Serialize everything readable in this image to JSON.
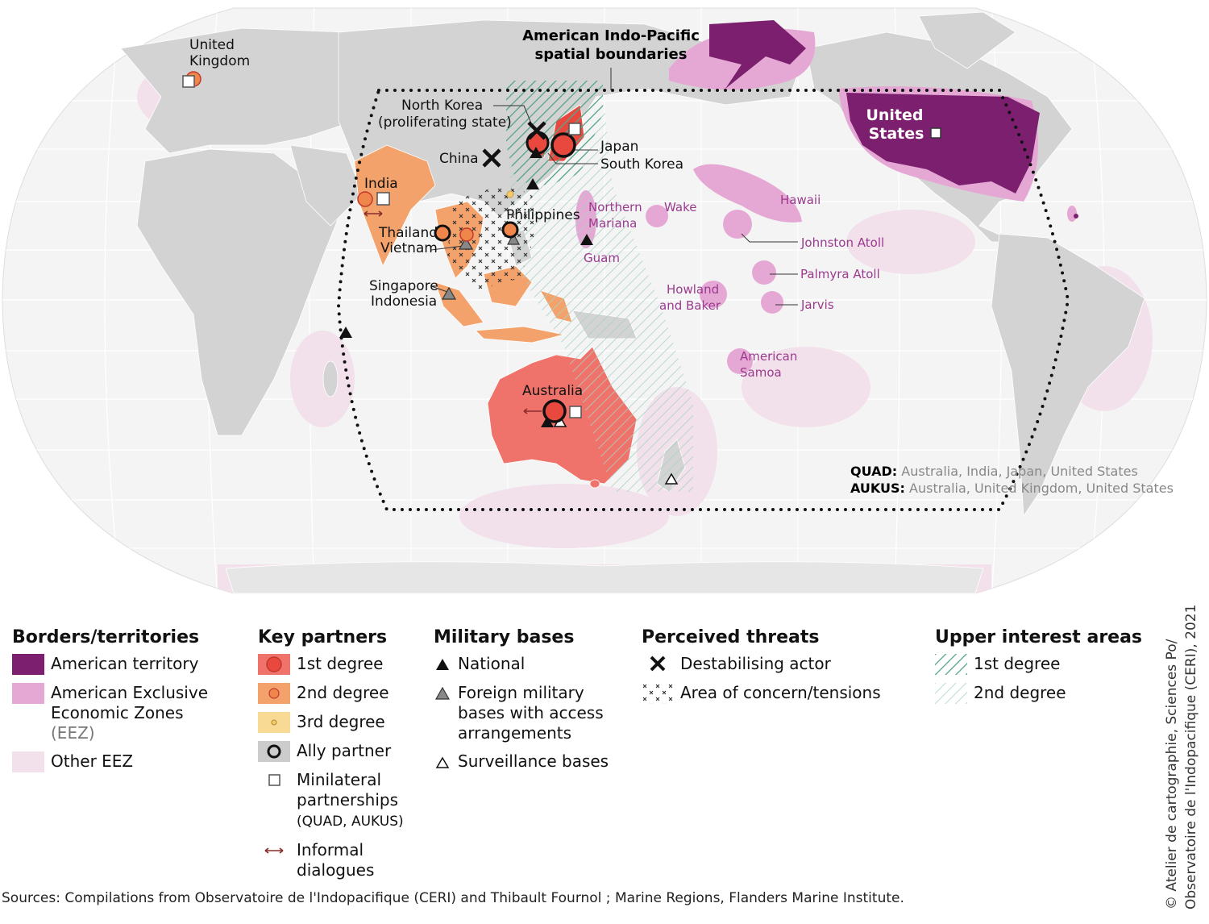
{
  "map": {
    "boundary_label": [
      "American Indo-Pacific",
      "spatial boundaries"
    ],
    "labels": [
      [
        "United",
        "Kingdom"
      ],
      [
        "North Korea"
      ],
      [
        "(proliferating state)"
      ],
      [
        "China"
      ],
      [
        "Japan"
      ],
      [
        "South Korea"
      ],
      [
        "India"
      ],
      [
        "Philippines"
      ],
      [
        "Thailand"
      ],
      [
        "Vietnam"
      ],
      [
        "Singapore"
      ],
      [
        "Indonesia"
      ],
      [
        "Australia"
      ],
      [
        "United",
        "States"
      ],
      [
        "Northern",
        "Mariana"
      ],
      [
        "Wake"
      ],
      [
        "Hawaii"
      ],
      [
        "Guam"
      ],
      [
        "Johnston Atoll"
      ],
      [
        "Palmyra Atoll"
      ],
      [
        "Howland",
        "and Baker"
      ],
      [
        "Jarvis"
      ],
      [
        "American",
        "Samoa"
      ]
    ],
    "groups": [
      {
        "name": "QUAD:",
        "members": "Australia, India, Japan, United States"
      },
      {
        "name": "AUKUS:",
        "members": "Australia, United Kingdom, United States"
      }
    ]
  },
  "legend": [
    {
      "title": "Borders/territories",
      "items": [
        "American territory",
        "American Exclusive Economic Zones",
        "(EEZ)",
        "Other EEZ"
      ]
    },
    {
      "title": "Key partners",
      "items": [
        "1st degree",
        "2nd degree",
        "3rd degree",
        "Ally partner",
        "Minilateral partnerships",
        "(QUAD, AUKUS)",
        "Informal dialogues"
      ]
    },
    {
      "title": "Military bases",
      "items": [
        "National",
        "Foreign military bases with access arrangements",
        "Surveillance bases"
      ]
    },
    {
      "title": "Perceived threats",
      "items": [
        "Destabilising actor",
        "Area of concern/tensions"
      ]
    },
    {
      "title": "Upper interest areas",
      "items": [
        "1st degree",
        "2nd degree"
      ]
    }
  ],
  "sources": "Sources: Compilations from Observatoire de l'Indopacifique (CERI) and Thibault Fournol ; Marine Regions, Flanders Marine Institute.",
  "credit": [
    "© Atelier de cartographie, Sciences Po/",
    "Observatoire de l'Indopacifique (CERI), 2021"
  ]
}
